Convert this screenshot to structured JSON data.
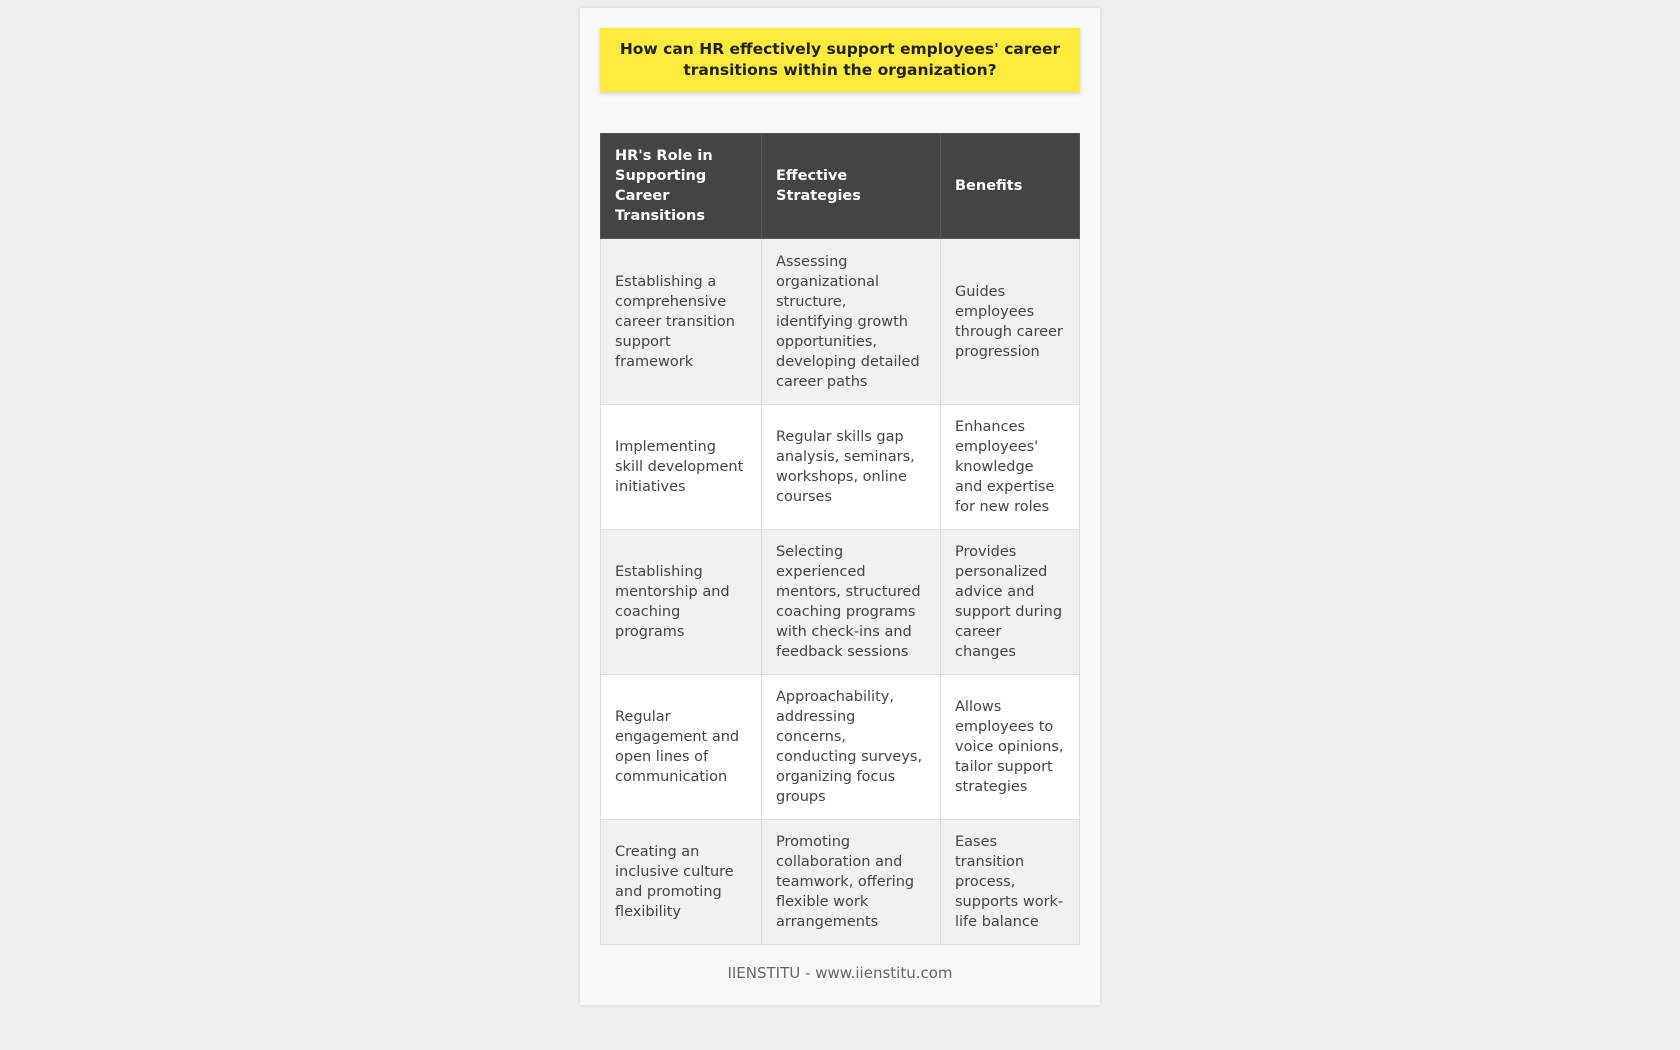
{
  "title": "How can HR effectively support employees' career transitions within the organization?",
  "table": {
    "headers": [
      "HR's Role in Supporting Career Transitions",
      "Effective Strategies",
      "Benefits"
    ],
    "rows": [
      [
        "Establishing a comprehensive career transition support framework",
        "Assessing organizational structure, identifying growth opportunities, developing detailed career paths",
        "Guides employees through career progression"
      ],
      [
        "Implementing skill development initiatives",
        "Regular skills gap analysis, seminars, workshops, online courses",
        "Enhances employees' knowledge and expertise for new roles"
      ],
      [
        "Establishing mentorship and coaching programs",
        "Selecting experienced mentors, structured coaching programs with check-ins and feedback sessions",
        "Provides personalized advice and support during career changes"
      ],
      [
        "Regular engagement and open lines of communication",
        "Approachability, addressing concerns, conducting surveys, organizing focus groups",
        "Allows employees to voice opinions, tailor support strategies"
      ],
      [
        "Creating an inclusive culture and promoting flexibility",
        "Promoting collaboration and teamwork, offering flexible work arrangements",
        "Eases transition process, supports work-life balance"
      ]
    ]
  },
  "footer": "IIENSTITU - www.iienstitu.com",
  "colors": {
    "title_bg": "#ffeb3b",
    "header_bg": "#444444"
  }
}
